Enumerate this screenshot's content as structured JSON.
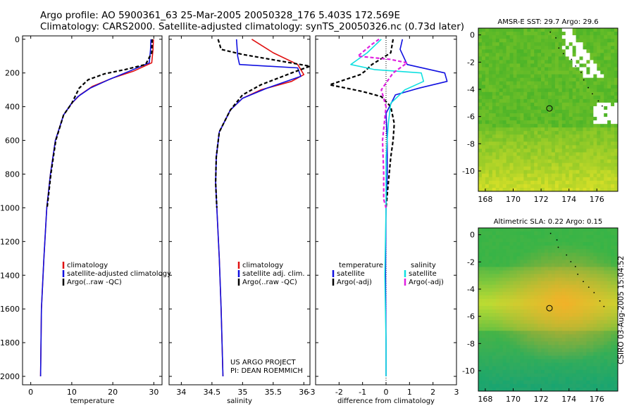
{
  "header": {
    "line1": "Argo profile: AO 5900361_63 25-Mar-2005 20050328_176 5.403S 172.569E",
    "line2": "Climatology: CARS2000. Satellite-adjusted climatology: synTS_20050326.nc (0.73d later)"
  },
  "stamp": "CSIRO 03-Aug-2005 15:04:52",
  "colors": {
    "climatology": "#e01010",
    "satellite": "#1010e0",
    "argo": "#000000",
    "sal_sat": "#10e0e0",
    "sal_argo": "#e020e0"
  },
  "chart_data": [
    {
      "type": "line",
      "name": "temperature",
      "xlabel": "temperature",
      "xlim": [
        -2,
        32
      ],
      "ylim": [
        0,
        2050
      ],
      "xticks": [
        "0",
        "10",
        "20",
        "30"
      ],
      "yticks": [
        "0",
        "200",
        "400",
        "600",
        "800",
        "1000",
        "1200",
        "1400",
        "1600",
        "1800",
        "2000"
      ],
      "legend": [
        "climatology",
        "satellite-adjusted climatology",
        "Argo(..raw -QC)"
      ],
      "series": [
        {
          "name": "climatology",
          "color": "#e01010",
          "x": [
            29.9,
            29.8,
            29.5,
            25,
            20,
            15,
            12,
            10,
            8,
            6,
            4.8,
            3.9,
            3.2,
            2.6,
            2.4
          ],
          "y": [
            0,
            60,
            140,
            190,
            230,
            280,
            330,
            380,
            450,
            600,
            800,
            1000,
            1300,
            1600,
            2000
          ]
        },
        {
          "name": "satellite-adjusted climatology",
          "color": "#1010e0",
          "x": [
            29.3,
            29.2,
            28.9,
            24,
            19,
            14.5,
            11.5,
            9.8,
            8,
            6,
            4.8,
            3.9,
            3.2,
            2.6,
            2.4
          ],
          "y": [
            0,
            60,
            140,
            190,
            240,
            290,
            340,
            385,
            450,
            600,
            800,
            1000,
            1300,
            1600,
            2000
          ]
        },
        {
          "name": "Argo(..raw -QC)",
          "color": "#000000",
          "dash": "5,3",
          "x": [
            29.6,
            29.5,
            28,
            23,
            18,
            14,
            11.8,
            10,
            8,
            6.1,
            4.9,
            4
          ],
          "y": [
            0,
            80,
            150,
            180,
            205,
            240,
            290,
            380,
            450,
            600,
            800,
            1000
          ]
        }
      ]
    },
    {
      "type": "line",
      "name": "salinity",
      "xlabel": "salinity",
      "xlim": [
        33.8,
        36.1
      ],
      "ylim": [
        0,
        2050
      ],
      "xticks": [
        "34",
        "34.5",
        "35",
        "35.5",
        "36"
      ],
      "legend": [
        "climatology",
        "satellite adj. clim.",
        "Argo(..raw -QC)"
      ],
      "annotation": [
        "US ARGO PROJECT",
        "PI: DEAN ROEMMICH"
      ],
      "series": [
        {
          "name": "climatology",
          "color": "#e01010",
          "x": [
            35.15,
            35.5,
            35.9,
            36.0,
            35.8,
            35.3,
            35.0,
            34.8,
            34.62,
            34.57,
            34.56,
            34.58,
            34.62,
            34.65,
            34.68
          ],
          "y": [
            0,
            80,
            150,
            210,
            250,
            300,
            350,
            420,
            550,
            700,
            850,
            1000,
            1300,
            1600,
            2000
          ]
        },
        {
          "name": "satellite adj. clim.",
          "color": "#1010e0",
          "x": [
            34.9,
            34.92,
            34.95,
            35.9,
            35.95,
            35.4,
            35.0,
            34.8,
            34.62,
            34.57,
            34.56,
            34.58,
            34.62,
            34.65,
            34.68
          ],
          "y": [
            0,
            100,
            150,
            170,
            220,
            290,
            350,
            420,
            550,
            700,
            850,
            1000,
            1300,
            1600,
            2000
          ]
        },
        {
          "name": "Argo(..raw -QC)",
          "color": "#000000",
          "dash": "5,3",
          "x": [
            34.6,
            34.65,
            35.0,
            36.1,
            35.8,
            35.3,
            35.0,
            34.8,
            34.62,
            34.57,
            34.56,
            34.58
          ],
          "y": [
            0,
            60,
            90,
            160,
            200,
            270,
            330,
            420,
            550,
            700,
            850,
            1000
          ]
        }
      ]
    },
    {
      "type": "line",
      "name": "difference",
      "xlabel": "difference from climatology",
      "xlim": [
        -3,
        3
      ],
      "ylim": [
        0,
        2050
      ],
      "xticks": [
        "-3",
        "-2",
        "-1",
        "0",
        "1",
        "2",
        "3"
      ],
      "legend": [
        "temperature",
        "satellite",
        "Argo(-adj)",
        "salinity",
        "satellite",
        "Argo(-adj)"
      ],
      "series": [
        {
          "name": "temperature satellite",
          "color": "#1010e0",
          "x": [
            0.7,
            0.6,
            0.9,
            2.5,
            2.6,
            1.4,
            0.4,
            0.0,
            0.05,
            0.05,
            0.0,
            -0.02,
            0.0,
            0.0
          ],
          "y": [
            0,
            60,
            150,
            200,
            250,
            290,
            330,
            440,
            600,
            800,
            1000,
            1400,
            1800,
            2000
          ]
        },
        {
          "name": "temperature Argo(-adj)",
          "color": "#000000",
          "dash": "5,3",
          "x": [
            0.3,
            0.2,
            -0.6,
            -0.9,
            -1.1,
            -2.4,
            -1.0,
            -0.2,
            0.2,
            0.35,
            0.3,
            0.2,
            0.1,
            0.0
          ],
          "y": [
            0,
            80,
            150,
            190,
            210,
            270,
            310,
            340,
            400,
            500,
            600,
            700,
            850,
            1000
          ]
        },
        {
          "name": "salinity satellite",
          "color": "#10e0e0",
          "x": [
            -0.2,
            -0.8,
            -1.5,
            -0.5,
            1.5,
            1.6,
            0.8,
            0.2,
            0.1,
            0.0,
            0.0,
            -0.05,
            0.0,
            0.0
          ],
          "y": [
            0,
            80,
            150,
            180,
            200,
            250,
            300,
            380,
            500,
            700,
            1000,
            1400,
            1800,
            2000
          ]
        },
        {
          "name": "salinity Argo(-adj)",
          "color": "#e020e0",
          "dash": "5,3",
          "x": [
            -0.3,
            -0.6,
            -1.2,
            0.2,
            0.9,
            0.3,
            -0.2,
            0.0,
            -0.15,
            -0.1,
            -0.1,
            0.0
          ],
          "y": [
            0,
            30,
            100,
            120,
            140,
            200,
            300,
            400,
            600,
            800,
            950,
            1000
          ]
        }
      ]
    },
    {
      "type": "heatmap",
      "name": "sst-map",
      "title": "AMSR-E SST: 29.7 Argo: 29.6",
      "xlim": [
        167.5,
        177.5
      ],
      "ylim": [
        -11.5,
        0.5
      ],
      "xticks": [
        "168",
        "170",
        "172",
        "174",
        "176"
      ],
      "yticks": [
        "0",
        "-2",
        "-4",
        "-6",
        "-8",
        "-10"
      ],
      "marker": {
        "lon": 172.6,
        "lat": -5.4
      }
    },
    {
      "type": "heatmap",
      "name": "sla-map",
      "title": "Altimetric SLA: 0.22 Argo: 0.15",
      "xlim": [
        167.5,
        177.5
      ],
      "ylim": [
        -11.5,
        0.5
      ],
      "xticks": [
        "168",
        "170",
        "172",
        "174",
        "176"
      ],
      "yticks": [
        "0",
        "-2",
        "-4",
        "-6",
        "-8",
        "-10"
      ],
      "marker": {
        "lon": 172.6,
        "lat": -5.4
      }
    }
  ]
}
